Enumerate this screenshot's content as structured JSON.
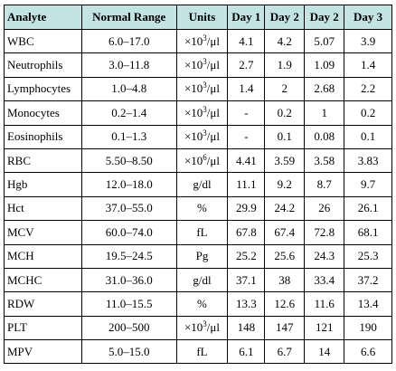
{
  "table": {
    "header": [
      "Analyte",
      "Normal Range",
      "Units",
      "Day 1",
      "Day 2",
      "Day 2",
      "Day 3"
    ],
    "rows": [
      [
        "WBC",
        "6.0–17.0",
        {
          "base": "×10",
          "sup": "3",
          "rest": "/μl"
        },
        "4.1",
        "4.2",
        "5.07",
        "3.9"
      ],
      [
        "Neutrophils",
        "3.0–11.8",
        {
          "base": "×10",
          "sup": "3",
          "rest": "/μl"
        },
        "2.7",
        "1.9",
        "1.09",
        "1.4"
      ],
      [
        "Lymphocytes",
        "1.0–4.8",
        {
          "base": "×10",
          "sup": "3",
          "rest": "/μl"
        },
        "1.4",
        "2",
        "2.68",
        "2.2"
      ],
      [
        "Monocytes",
        "0.2–1.4",
        {
          "base": "×10",
          "sup": "3",
          "rest": "/μl"
        },
        "-",
        "0.2",
        "1",
        "0.2"
      ],
      [
        "Eosinophils",
        "0.1–1.3",
        {
          "base": "×10",
          "sup": "3",
          "rest": "/μl"
        },
        "-",
        "0.1",
        "0.08",
        "0.1"
      ],
      [
        "RBC",
        "5.50–8.50",
        {
          "base": "×10",
          "sup": "6",
          "rest": "/μl"
        },
        "4.41",
        "3.59",
        "3.58",
        "3.83"
      ],
      [
        "Hgb",
        "12.0–18.0",
        "g/dl",
        "11.1",
        "9.2",
        "8.7",
        "9.7"
      ],
      [
        "Hct",
        "37.0–55.0",
        "%",
        "29.9",
        "24.2",
        "26",
        "26.1"
      ],
      [
        "MCV",
        "60.0–74.0",
        "fL",
        "67.8",
        "67.4",
        "72.8",
        "68.1"
      ],
      [
        "MCH",
        "19.5–24.5",
        "Pg",
        "25.2",
        "25.6",
        "24.3",
        "25.3"
      ],
      [
        "MCHC",
        "31.0–36.0",
        "g/dl",
        "37.1",
        "38",
        "33.4",
        "37.2"
      ],
      [
        "RDW",
        "11.0–15.5",
        "%",
        "13.3",
        "12.6",
        "11.6",
        "13.4"
      ],
      [
        "PLT",
        "200–500",
        {
          "base": "×10",
          "sup": "3",
          "rest": "/μl"
        },
        "148",
        "147",
        "121",
        "190"
      ],
      [
        "MPV",
        "5.0–15.0",
        "fL",
        "6.1",
        "6.7",
        "14",
        "6.6"
      ]
    ]
  }
}
